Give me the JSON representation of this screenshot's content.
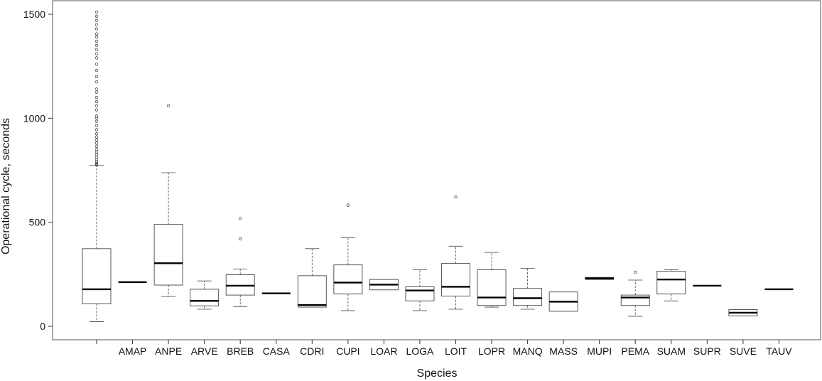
{
  "chart_data": {
    "type": "boxplot",
    "title": "",
    "xlabel": "Species",
    "ylabel": "Operational cycle, seconds",
    "ylim": [
      0,
      1500
    ],
    "yticks": [
      0,
      500,
      1000,
      1500
    ],
    "grid": false,
    "legend": "none",
    "categories": [
      "",
      "AMAP",
      "ANPE",
      "ARVE",
      "BREB",
      "CASA",
      "CDRI",
      "CUPI",
      "LOAR",
      "LOGA",
      "LOIT",
      "LOPR",
      "MANQ",
      "MASS",
      "MUPI",
      "PEMA",
      "SUAM",
      "SUPR",
      "SUVE",
      "TAUV"
    ],
    "boxes": [
      {
        "category": "",
        "min": 22,
        "q1": 108,
        "median": 178,
        "q3": 373,
        "max": 773,
        "outliers": [
          775,
          782,
          790,
          800,
          812,
          825,
          838,
          850,
          865,
          880,
          895,
          910,
          925,
          945,
          965,
          985,
          1000,
          1010,
          1040,
          1060,
          1080,
          1100,
          1125,
          1140,
          1175,
          1200,
          1230,
          1260,
          1290,
          1310,
          1330,
          1350,
          1370,
          1390,
          1405,
          1430,
          1450,
          1470,
          1490,
          1510
        ]
      },
      {
        "category": "AMAP",
        "min": 212,
        "q1": 212,
        "median": 212,
        "q3": 212,
        "max": 212,
        "outliers": []
      },
      {
        "category": "ANPE",
        "min": 143,
        "q1": 198,
        "median": 303,
        "q3": 490,
        "max": 738,
        "outliers": [
          1060
        ]
      },
      {
        "category": "ARVE",
        "min": 82,
        "q1": 98,
        "median": 122,
        "q3": 178,
        "max": 218,
        "outliers": []
      },
      {
        "category": "BREB",
        "min": 95,
        "q1": 150,
        "median": 195,
        "q3": 248,
        "max": 275,
        "outliers": [
          420,
          518
        ]
      },
      {
        "category": "CASA",
        "min": 158,
        "q1": 158,
        "median": 158,
        "q3": 158,
        "max": 158,
        "outliers": []
      },
      {
        "category": "CDRI",
        "min": 92,
        "q1": 92,
        "median": 102,
        "q3": 243,
        "max": 373,
        "outliers": []
      },
      {
        "category": "CUPI",
        "min": 75,
        "q1": 155,
        "median": 210,
        "q3": 295,
        "max": 425,
        "outliers": [
          582
        ]
      },
      {
        "category": "LOAR",
        "min": 175,
        "q1": 175,
        "median": 200,
        "q3": 225,
        "max": 225,
        "outliers": []
      },
      {
        "category": "LOGA",
        "min": 75,
        "q1": 122,
        "median": 172,
        "q3": 190,
        "max": 272,
        "outliers": []
      },
      {
        "category": "LOIT",
        "min": 82,
        "q1": 145,
        "median": 190,
        "q3": 302,
        "max": 385,
        "outliers": [
          622
        ]
      },
      {
        "category": "LOPR",
        "min": 92,
        "q1": 100,
        "median": 138,
        "q3": 272,
        "max": 355,
        "outliers": []
      },
      {
        "category": "MANQ",
        "min": 82,
        "q1": 100,
        "median": 135,
        "q3": 182,
        "max": 278,
        "outliers": []
      },
      {
        "category": "MASS",
        "min": 72,
        "q1": 72,
        "median": 118,
        "q3": 165,
        "max": 165,
        "outliers": []
      },
      {
        "category": "MUPI",
        "min": 225,
        "q1": 225,
        "median": 230,
        "q3": 235,
        "max": 235,
        "outliers": []
      },
      {
        "category": "PEMA",
        "min": 48,
        "q1": 100,
        "median": 138,
        "q3": 150,
        "max": 222,
        "outliers": [
          260
        ]
      },
      {
        "category": "SUAM",
        "min": 122,
        "q1": 155,
        "median": 225,
        "q3": 265,
        "max": 272,
        "outliers": []
      },
      {
        "category": "SUPR",
        "min": 195,
        "q1": 195,
        "median": 195,
        "q3": 195,
        "max": 195,
        "outliers": []
      },
      {
        "category": "SUVE",
        "min": 50,
        "q1": 50,
        "median": 65,
        "q3": 80,
        "max": 80,
        "outliers": []
      },
      {
        "category": "TAUV",
        "min": 178,
        "q1": 178,
        "median": 178,
        "q3": 178,
        "max": 178,
        "outliers": []
      }
    ]
  }
}
